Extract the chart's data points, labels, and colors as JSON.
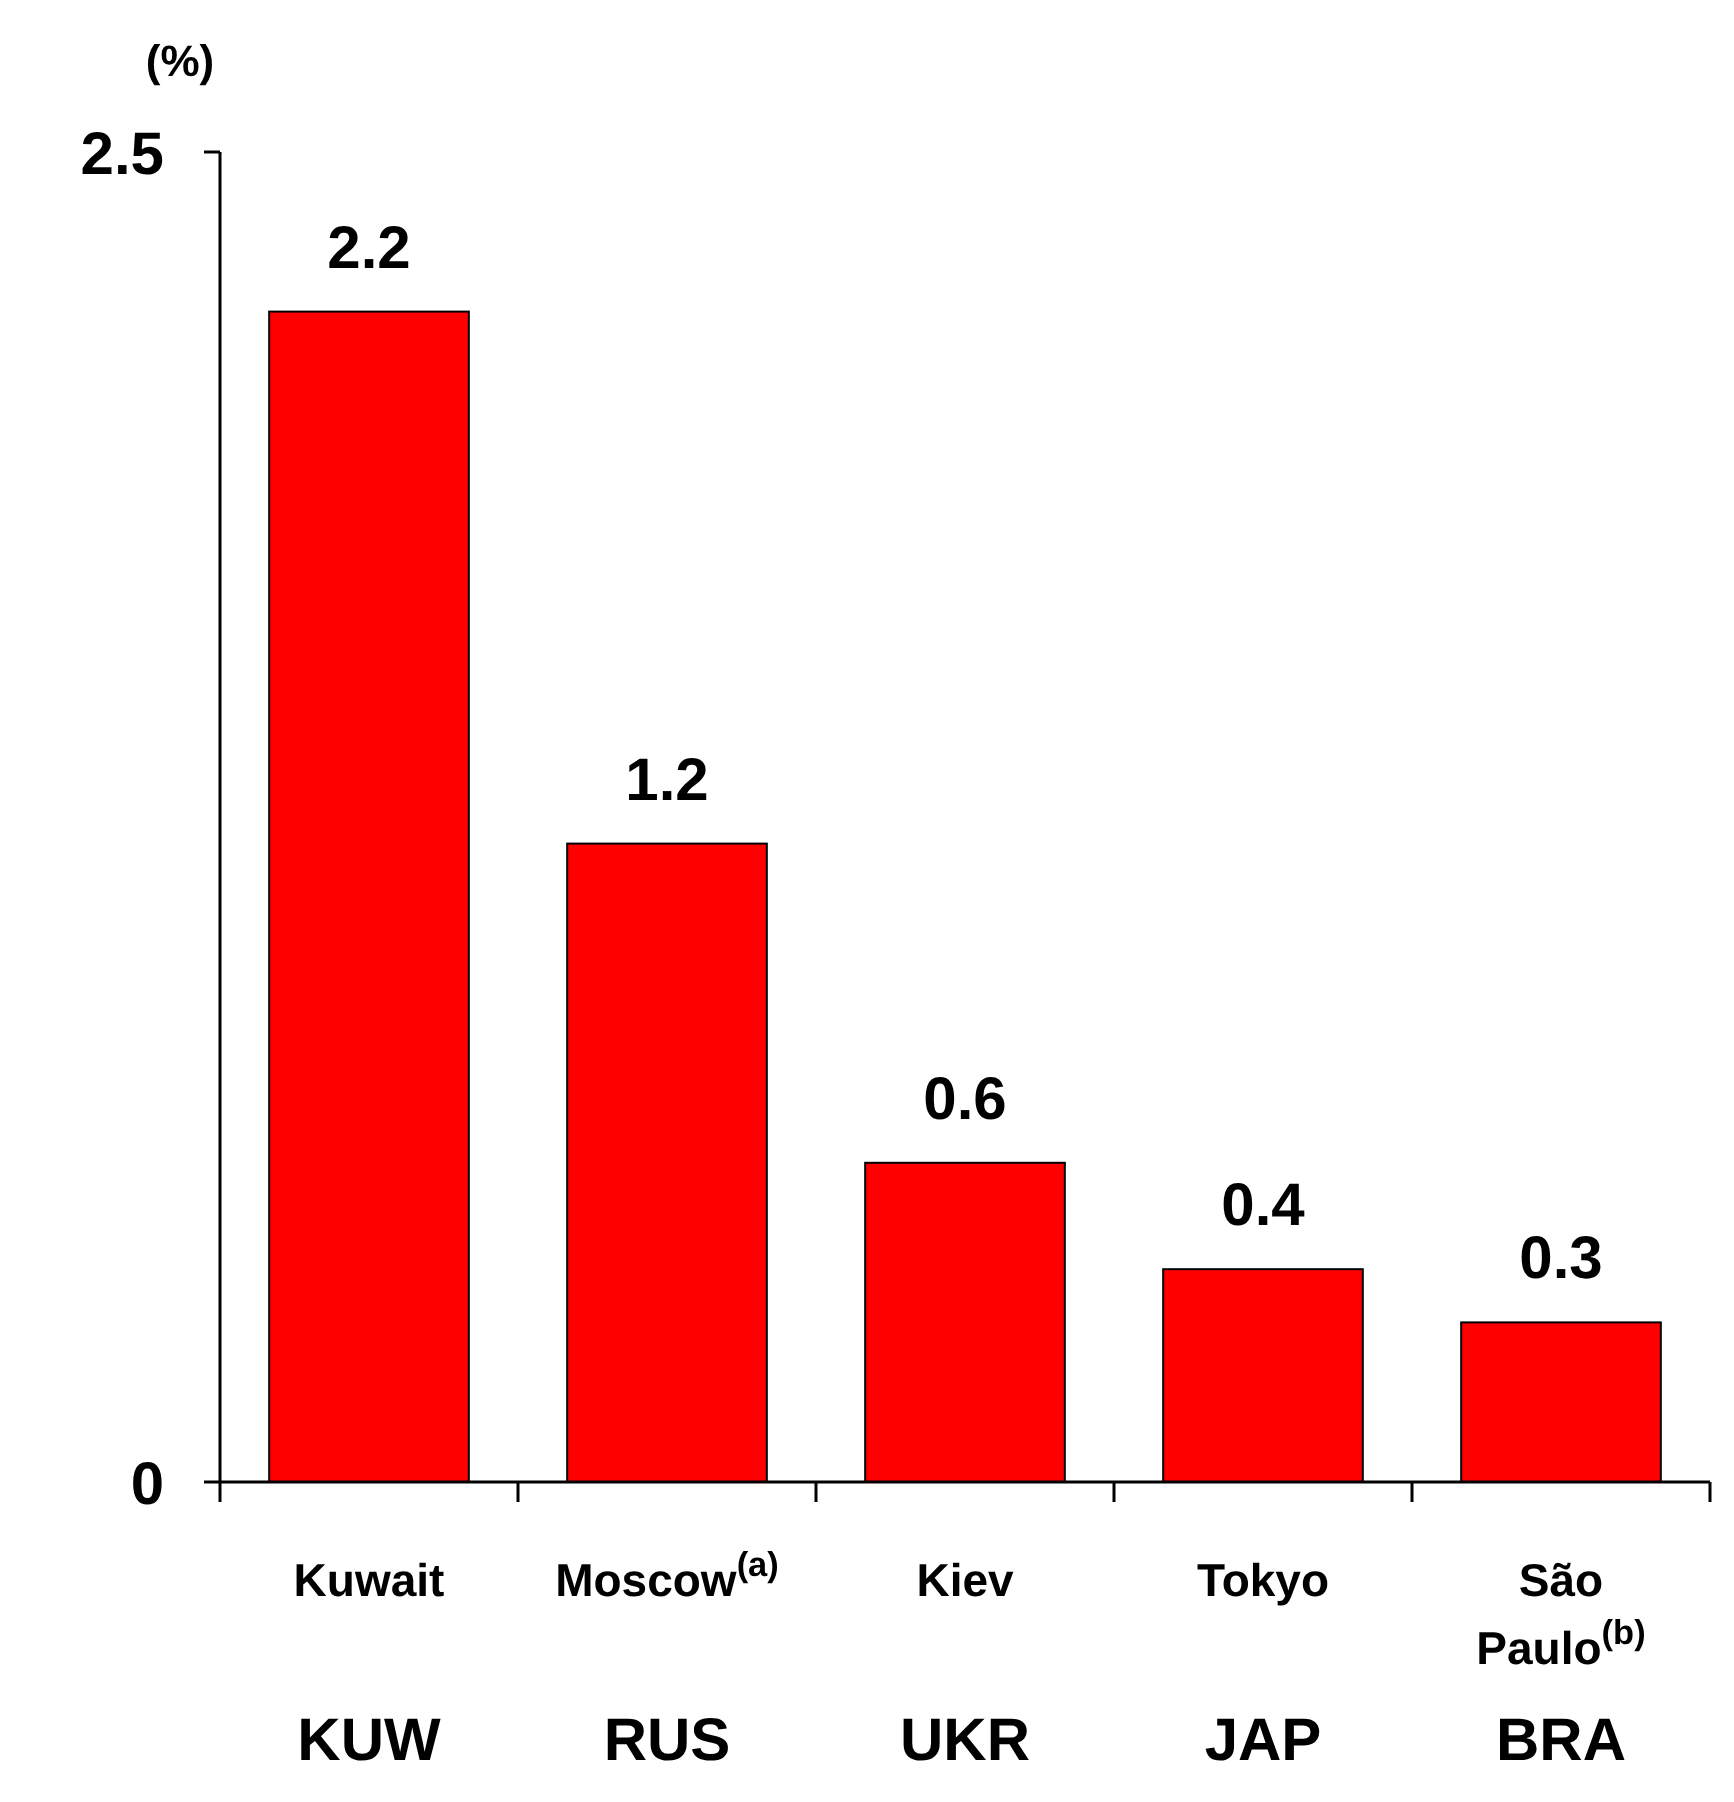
{
  "chart_data": {
    "type": "bar",
    "ylabel": "(%)",
    "categories": [
      "Kuwait\nKUW",
      "Moscow$^{(a)}$\nRUS",
      "Kiev\nUKR",
      "Tokyo\nJAP",
      "São\nPaulo$^{(b)}$\nBRA"
    ],
    "values": [
      2.2,
      1.2,
      0.6,
      0.4,
      0.3
    ],
    "color": "#ff0000",
    "ylim": [
      0,
      2.5
    ],
    "yticks": [
      0,
      2.5
    ],
    "data_labels": true,
    "grid": false
  }
}
